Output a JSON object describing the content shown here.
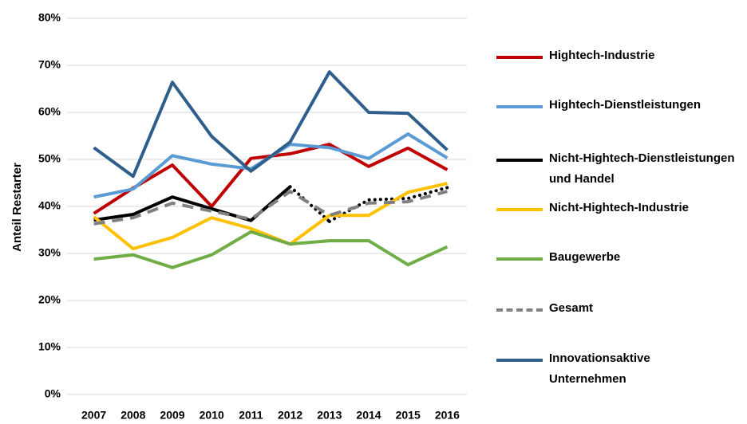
{
  "chart_data": {
    "type": "line",
    "y_axis_label": "Anteil Restarter",
    "categories": [
      "2007",
      "2008",
      "2009",
      "2010",
      "2011",
      "2012",
      "2013",
      "2014",
      "2015",
      "2016"
    ],
    "ylim": [
      0,
      80
    ],
    "yticks": [
      {
        "value": 0,
        "label": "0%"
      },
      {
        "value": 10,
        "label": "10%"
      },
      {
        "value": 20,
        "label": "20%"
      },
      {
        "value": 30,
        "label": "30%"
      },
      {
        "value": 40,
        "label": "40%"
      },
      {
        "value": 50,
        "label": "50%"
      },
      {
        "value": 60,
        "label": "60%"
      },
      {
        "value": 70,
        "label": "70%"
      },
      {
        "value": 80,
        "label": "80%"
      }
    ],
    "grid": true,
    "legend_position": "right",
    "series": [
      {
        "name": "Hightech-Industrie",
        "color": "#c00000",
        "values": [
          38.5,
          43.9,
          48.8,
          40.0,
          50.2,
          51.2,
          53.2,
          48.5,
          52.4,
          47.8
        ]
      },
      {
        "name": "Hightech-Dienstleistungen",
        "color": "#5b9bd5",
        "values": [
          42.0,
          43.7,
          50.8,
          49.0,
          48.0,
          53.2,
          52.5,
          50.2,
          55.4,
          50.3
        ]
      },
      {
        "name": "Nicht-Hightech-Dienstleistungen und Handel",
        "color": "#000000",
        "values": [
          37.1,
          38.3,
          42.0,
          39.5,
          37.0,
          44.2,
          36.8,
          41.4,
          41.7,
          44.0
        ],
        "dotted_from": 5
      },
      {
        "name": "Nicht-Hightech-Industrie",
        "color": "#ffc000",
        "values": [
          37.8,
          31.0,
          33.4,
          37.6,
          35.3,
          32.0,
          38.1,
          38.1,
          43.0,
          44.9
        ]
      },
      {
        "name": "Baugewerbe",
        "color": "#70ad47",
        "values": [
          28.8,
          29.7,
          27.0,
          29.7,
          34.6,
          32.0,
          32.7,
          32.7,
          27.6,
          31.4
        ]
      },
      {
        "name": "Gesamt",
        "color": "#808080",
        "values": [
          36.3,
          37.6,
          40.7,
          39.0,
          37.3,
          43.2,
          38.1,
          40.7,
          41.0,
          43.2
        ],
        "dashed": true
      },
      {
        "name": "Innovationsaktive Unternehmen",
        "color": "#2e5f8c",
        "values": [
          52.5,
          46.4,
          66.4,
          54.9,
          47.5,
          53.7,
          68.6,
          60.0,
          59.8,
          52.0
        ]
      }
    ]
  }
}
